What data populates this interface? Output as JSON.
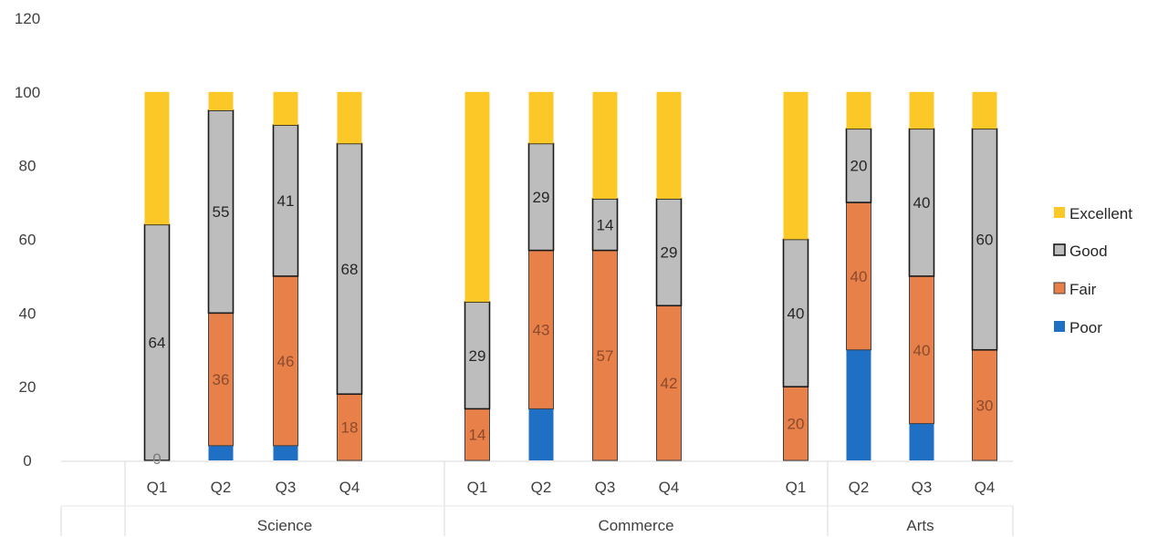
{
  "chart_data": {
    "type": "bar",
    "stacked": true,
    "ylim": [
      0,
      120
    ],
    "y_ticks": [
      0,
      20,
      40,
      60,
      80,
      100,
      120
    ],
    "groups": [
      {
        "label": "Science",
        "categories": [
          "Q1",
          "Q2",
          "Q3",
          "Q4"
        ]
      },
      {
        "label": "Commerce",
        "categories": [
          "Q1",
          "Q2",
          "Q3",
          "Q4"
        ]
      },
      {
        "label": "Arts",
        "categories": [
          "Q1",
          "Q2",
          "Q3",
          "Q4"
        ]
      }
    ],
    "series": [
      {
        "name": "Poor",
        "color": "#1f6fc5",
        "values": [
          0,
          4,
          4,
          0,
          0,
          14,
          0,
          0,
          0,
          30,
          10,
          0
        ],
        "labels": [
          "",
          "",
          "",
          "",
          "",
          "",
          "",
          "",
          "",
          "",
          "",
          ""
        ]
      },
      {
        "name": "Fair",
        "color": "#e8804a",
        "values": [
          0,
          36,
          46,
          18,
          14,
          43,
          57,
          42,
          20,
          40,
          40,
          30
        ],
        "labels": [
          "",
          "36",
          "46",
          "18",
          "14",
          "43",
          "57",
          "42",
          "20",
          "40",
          "40",
          "30"
        ]
      },
      {
        "name": "Good",
        "color": "#bdbdbd",
        "values": [
          64,
          55,
          41,
          68,
          29,
          29,
          14,
          29,
          40,
          20,
          40,
          60
        ],
        "labels": [
          "64",
          "55",
          "41",
          "68",
          "29",
          "29",
          "14",
          "29",
          "40",
          "20",
          "40",
          "60"
        ]
      },
      {
        "name": "Excellent",
        "color": "#fcc828",
        "values": [
          36,
          5,
          9,
          14,
          57,
          14,
          29,
          29,
          40,
          10,
          10,
          10
        ],
        "labels": [
          "",
          "",
          "",
          "",
          "",
          "",
          "",
          "",
          "",
          "",
          "",
          ""
        ]
      }
    ],
    "extra_labels": [
      {
        "bar": 0,
        "value": 0,
        "text": "0"
      }
    ],
    "legend": {
      "position": "right",
      "order": [
        "Excellent",
        "Good",
        "Fair",
        "Poor"
      ]
    },
    "grid": false
  }
}
